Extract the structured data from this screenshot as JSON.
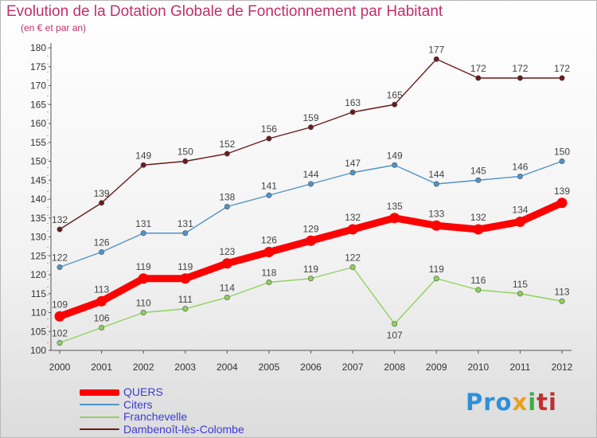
{
  "title": "Evolution de la Dotation Globale de Fonctionnement par Habitant",
  "subtitle": "(en € et par an)",
  "logo": {
    "text_part1": "Pro",
    "text_part2": "x",
    "text_part3": "i",
    "text_part4": "ti"
  },
  "chart_data": {
    "type": "line",
    "title": "Evolution de la Dotation Globale de Fonctionnement par Habitant",
    "subtitle": "(en € et par an)",
    "xlabel": "",
    "ylabel": "",
    "x": [
      "2000",
      "2001",
      "2002",
      "2003",
      "2004",
      "2005",
      "2006",
      "2007",
      "2008",
      "2009",
      "2010",
      "2011",
      "2012"
    ],
    "ylim": [
      100,
      180
    ],
    "yticks": [
      100,
      105,
      110,
      115,
      120,
      125,
      130,
      135,
      140,
      145,
      150,
      155,
      160,
      165,
      170,
      175,
      180
    ],
    "grid": false,
    "legend_position": "bottom-left",
    "series": [
      {
        "name": "QUERS",
        "color": "#ff0000",
        "values": [
          109,
          113,
          119,
          119,
          123,
          126,
          129,
          132,
          135,
          133,
          132,
          134,
          139
        ]
      },
      {
        "name": "Citers",
        "color": "#4f94c7",
        "values": [
          122,
          126,
          131,
          131,
          138,
          141,
          144,
          147,
          149,
          144,
          145,
          146,
          150
        ]
      },
      {
        "name": "Franchevelle",
        "color": "#8fd25a",
        "values": [
          102,
          106,
          110,
          111,
          114,
          118,
          119,
          122,
          107,
          119,
          116,
          115,
          113
        ]
      },
      {
        "name": "Dambenoît-lès-Colombe",
        "color": "#6b1a1a",
        "values": [
          132,
          139,
          149,
          150,
          152,
          156,
          159,
          163,
          165,
          177,
          172,
          172,
          172
        ]
      }
    ]
  }
}
